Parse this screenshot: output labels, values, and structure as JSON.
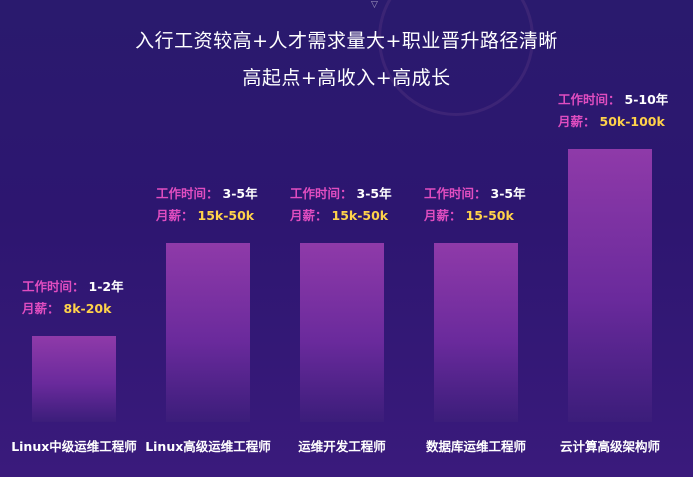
{
  "header": {
    "line1": "入行工资较高+人才需求量大+职业晋升路径清晰",
    "line2": "高起点+高收入+高成长"
  },
  "labels": {
    "work_time": "工作时间：",
    "salary": "月薪："
  },
  "colors": {
    "accent_label": "#e04dc0",
    "salary_value": "#ffd24a",
    "bar_top": "#8f3aa9",
    "bar_bottom": "#3b1d7a"
  },
  "chart_data": {
    "type": "bar",
    "categories": [
      "Linux中级运维工程师",
      "Linux高级运维工程师",
      "运维开发工程师",
      "数据库运维工程师",
      "云计算高级架构师"
    ],
    "series": [
      {
        "values": [
          1,
          3,
          3,
          3,
          5
        ]
      }
    ],
    "work_time": [
      "1-2年",
      "3-5年",
      "3-5年",
      "3-5年",
      "5-10年"
    ],
    "salary": [
      "8k-20k",
      "15k-50k",
      "15k-50k",
      "15-50k",
      "50k-100k"
    ],
    "ylim": [
      0,
      5
    ],
    "grid": false,
    "legend": "none"
  }
}
